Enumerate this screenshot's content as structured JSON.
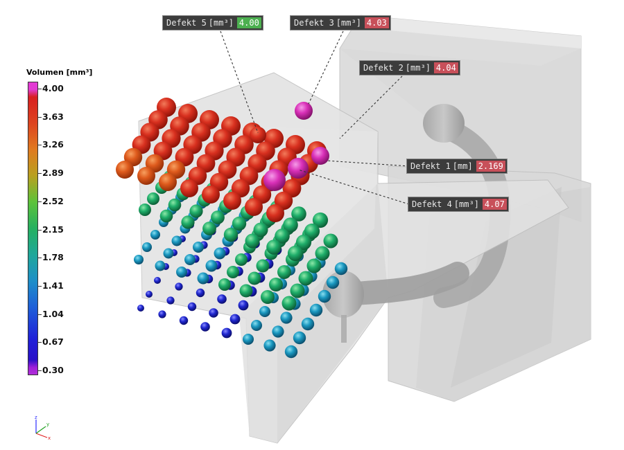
{
  "legend": {
    "title": "Volumen [mm³]",
    "ticks": [
      "4.00",
      "3.63",
      "3.26",
      "2.89",
      "2.52",
      "2.15",
      "1.78",
      "1.41",
      "1.04",
      "0.67",
      "0.30"
    ]
  },
  "callouts": [
    {
      "id": "defekt-5",
      "name": "Defekt 5",
      "unit": "[mm³]",
      "value": "4.00",
      "value_color": "#4cb050"
    },
    {
      "id": "defekt-3",
      "name": "Defekt 3",
      "unit": "[mm³]",
      "value": "4.03",
      "value_color": "#c8505a"
    },
    {
      "id": "defekt-2",
      "name": "Defekt 2",
      "unit": "[mm³]",
      "value": "4.04",
      "value_color": "#c8505a"
    },
    {
      "id": "defekt-1",
      "name": "Defekt 1",
      "unit": "[mm]",
      "value": "2.169",
      "value_color": "#c8505a"
    },
    {
      "id": "defekt-4",
      "name": "Defekt 4",
      "unit": "[mm³]",
      "value": "4.07",
      "value_color": "#c8505a"
    }
  ],
  "axes": {
    "x": "x",
    "y": "y",
    "z": "z"
  }
}
